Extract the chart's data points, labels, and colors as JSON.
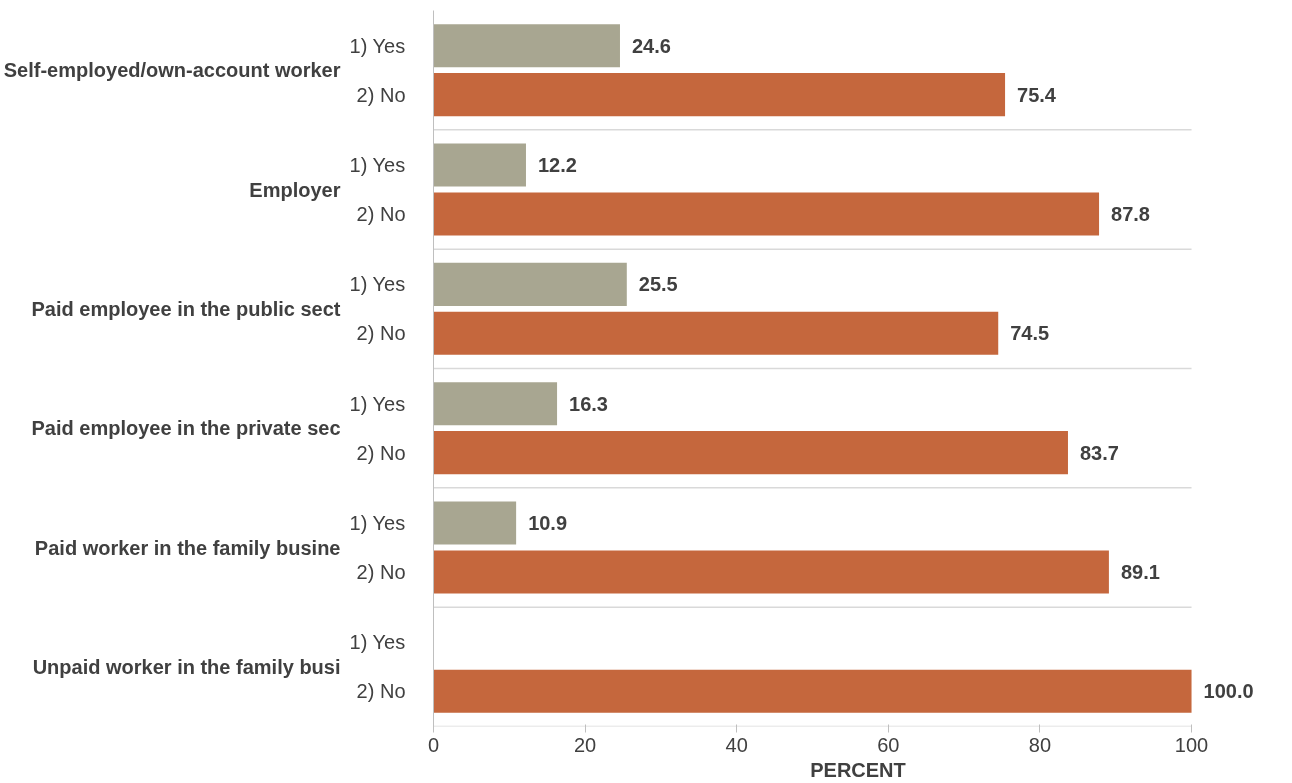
{
  "chart_data": {
    "type": "bar",
    "orientation": "horizontal",
    "categories": [
      "Self-employed/own-account worker",
      "Employer",
      "Paid employee in the public sect",
      "Paid employee in the private sec",
      "Paid worker in the family busine",
      "Unpaid worker in the family busi"
    ],
    "series": [
      {
        "name": "1) Yes",
        "color": "#a8a691",
        "values": [
          24.6,
          12.2,
          25.5,
          16.3,
          10.9,
          null
        ],
        "value_labels": [
          "24.6",
          "12.2",
          "25.5",
          "16.3",
          "10.9",
          null
        ]
      },
      {
        "name": "2) No",
        "color": "#c5673d",
        "values": [
          75.4,
          87.8,
          74.5,
          83.7,
          89.1,
          100
        ],
        "value_labels": [
          "75.4",
          "87.8",
          "74.5",
          "83.7",
          "89.1",
          "100.0"
        ]
      }
    ],
    "xlim": [
      0,
      100
    ],
    "xticks": [
      0,
      20,
      40,
      60,
      80,
      100
    ],
    "xlabel": "PERCENT",
    "grid": false
  }
}
